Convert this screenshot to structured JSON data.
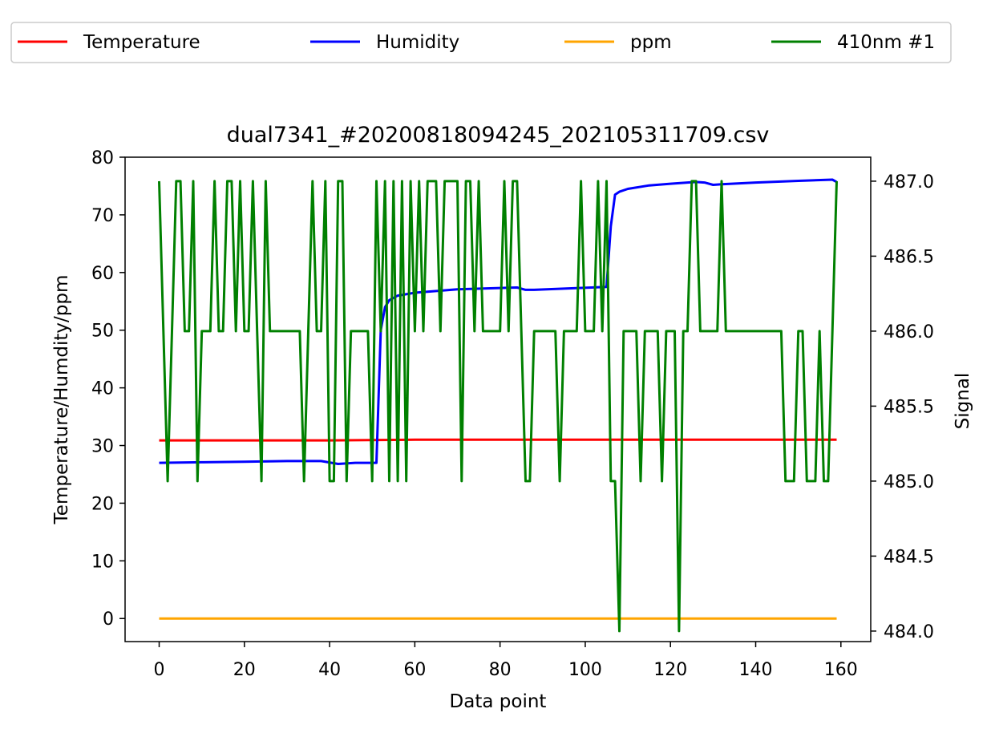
{
  "chart_data": {
    "type": "line",
    "title": "dual7341_#20200818094245_202105311709.csv",
    "xlabel": "Data point",
    "ylabel": "Temperature/Humdity/ppm",
    "y2label": "Signal",
    "xlim": [
      -8,
      167
    ],
    "ylim": [
      -4,
      80
    ],
    "y2lim": [
      483.93,
      487.16
    ],
    "xticks": [
      0,
      20,
      40,
      60,
      80,
      100,
      120,
      140,
      160
    ],
    "yticks": [
      0,
      10,
      20,
      30,
      40,
      50,
      60,
      70,
      80
    ],
    "y2ticks": [
      484.0,
      484.5,
      485.0,
      485.5,
      486.0,
      486.5,
      487.0
    ],
    "legend_position": "top, outside plot, 4 columns",
    "grid": false,
    "series": [
      {
        "name": "Temperature",
        "axis": "left",
        "color": "#ff0000",
        "x": [
          0,
          20,
          40,
          60,
          80,
          100,
          120,
          140,
          159
        ],
        "values": [
          30.9,
          30.9,
          30.9,
          31.0,
          31.0,
          31.0,
          31.0,
          31.0,
          31.0
        ]
      },
      {
        "name": "Humidity",
        "axis": "left",
        "color": "#0000ff",
        "x": [
          0,
          10,
          20,
          30,
          38,
          42,
          46,
          51,
          52,
          53,
          54,
          56,
          60,
          70,
          84,
          86,
          88,
          95,
          105,
          106,
          107,
          108,
          110,
          115,
          120,
          126,
          128,
          130,
          132,
          140,
          150,
          158,
          159
        ],
        "values": [
          27.0,
          27.1,
          27.2,
          27.3,
          27.3,
          26.8,
          27.0,
          27.0,
          50.0,
          54.0,
          55.2,
          56.0,
          56.5,
          57.1,
          57.4,
          57.0,
          57.0,
          57.2,
          57.5,
          68.0,
          73.5,
          74.0,
          74.5,
          75.1,
          75.4,
          75.7,
          75.6,
          75.2,
          75.3,
          75.6,
          75.9,
          76.1,
          75.7
        ]
      },
      {
        "name": "ppm",
        "axis": "left",
        "color": "#ffa500",
        "x": [
          0,
          159
        ],
        "values": [
          0,
          0
        ]
      },
      {
        "name": "410nm #1",
        "axis": "right",
        "color": "#008000",
        "x": [
          0,
          1,
          2,
          3,
          4,
          5,
          6,
          7,
          8,
          9,
          10,
          11,
          12,
          13,
          14,
          15,
          16,
          17,
          18,
          19,
          20,
          21,
          22,
          23,
          24,
          25,
          26,
          27,
          28,
          29,
          30,
          31,
          32,
          33,
          34,
          35,
          36,
          37,
          38,
          39,
          40,
          41,
          42,
          43,
          44,
          45,
          46,
          47,
          48,
          49,
          50,
          51,
          52,
          53,
          54,
          55,
          56,
          57,
          58,
          59,
          60,
          61,
          62,
          63,
          64,
          65,
          66,
          67,
          68,
          69,
          70,
          71,
          72,
          73,
          74,
          75,
          76,
          77,
          78,
          79,
          80,
          81,
          82,
          83,
          84,
          85,
          86,
          87,
          88,
          89,
          90,
          91,
          92,
          93,
          94,
          95,
          96,
          97,
          98,
          99,
          100,
          101,
          102,
          103,
          104,
          105,
          106,
          107,
          108,
          109,
          110,
          111,
          112,
          113,
          114,
          115,
          116,
          117,
          118,
          119,
          120,
          121,
          122,
          123,
          124,
          125,
          126,
          127,
          128,
          129,
          130,
          131,
          132,
          133,
          134,
          135,
          136,
          137,
          138,
          139,
          140,
          141,
          142,
          143,
          144,
          145,
          146,
          147,
          148,
          149,
          150,
          151,
          152,
          153,
          154,
          155,
          156,
          157,
          158,
          159
        ],
        "values": [
          487,
          486,
          485,
          486,
          487,
          487,
          486,
          486,
          487,
          485,
          486,
          486,
          486,
          487,
          486,
          486,
          487,
          487,
          486,
          487,
          486,
          486,
          487,
          486,
          485,
          487,
          486,
          486,
          486,
          486,
          486,
          486,
          486,
          486,
          485,
          486,
          487,
          486,
          486,
          487,
          485,
          485,
          487,
          487,
          485,
          486,
          486,
          486,
          486,
          486,
          485,
          487,
          486,
          487,
          485,
          487,
          485,
          487,
          485,
          487,
          486,
          487,
          486,
          487,
          487,
          487,
          486,
          487,
          487,
          487,
          487,
          485,
          487,
          487,
          486,
          487,
          486,
          486,
          486,
          486,
          486,
          487,
          486,
          487,
          487,
          486,
          485,
          485,
          486,
          486,
          486,
          486,
          486,
          486,
          485,
          486,
          486,
          486,
          486,
          487,
          486,
          486,
          486,
          487,
          486,
          487,
          485,
          485,
          484,
          486,
          486,
          486,
          486,
          485,
          486,
          486,
          486,
          486,
          485,
          486,
          486,
          486,
          484,
          486,
          486,
          487,
          487,
          486,
          486,
          486,
          486,
          486,
          487,
          486,
          486,
          486,
          486,
          486,
          486,
          486,
          486,
          486,
          486,
          486,
          486,
          486,
          486,
          485,
          485,
          485,
          486,
          486,
          485,
          485,
          485,
          486,
          485,
          485,
          486,
          487
        ]
      }
    ]
  }
}
